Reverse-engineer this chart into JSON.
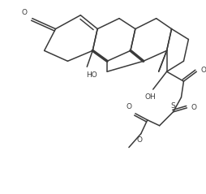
{
  "bg_color": "#ffffff",
  "line_color": "#3a3a3a",
  "line_width": 1.1,
  "font_size": 6.5,
  "figsize": [
    2.55,
    2.39
  ],
  "dpi": 100,
  "xlim": [
    0,
    255
  ],
  "ylim": [
    0,
    239
  ]
}
